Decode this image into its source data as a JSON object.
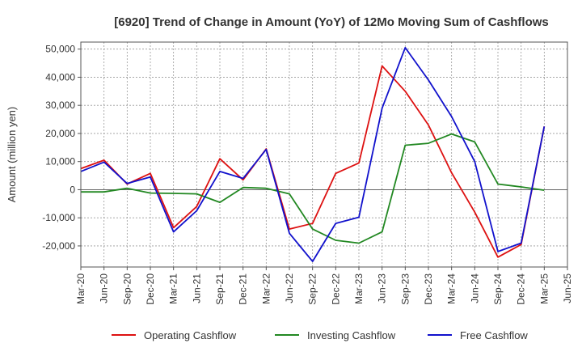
{
  "chart_data": {
    "type": "line",
    "title": "[6920]  Trend of Change in Amount (YoY) of 12Mo Moving Sum of Cashflows",
    "xlabel": "",
    "ylabel": "Amount (million yen)",
    "ylim": [
      -27500,
      52500
    ],
    "y_ticks": [
      -20000,
      -10000,
      0,
      10000,
      20000,
      30000,
      40000,
      50000
    ],
    "y_tick_labels": [
      "-20,000",
      "-10,000",
      "0",
      "10,000",
      "20,000",
      "30,000",
      "40,000",
      "50,000"
    ],
    "x_tick_labels": [
      "Mar-20",
      "Jun-20",
      "Sep-20",
      "Dec-20",
      "Mar-21",
      "Jun-21",
      "Sep-21",
      "Dec-21",
      "Mar-22",
      "Jun-22",
      "Sep-22",
      "Dec-22",
      "Mar-23",
      "Jun-23",
      "Sep-23",
      "Dec-23",
      "Mar-24",
      "Jun-24",
      "Sep-24",
      "Dec-24",
      "Mar-25",
      "Jun-25"
    ],
    "grid": true,
    "legend_position": "bottom",
    "series": [
      {
        "name": "Operating Cashflow",
        "color": "#dd1111",
        "values": [
          7500,
          10500,
          2000,
          5800,
          -13500,
          -6000,
          11000,
          3500,
          14500,
          -14000,
          -12000,
          5800,
          9500,
          44000,
          35000,
          23000,
          6000,
          -8000,
          -24000,
          -19500,
          22500
        ]
      },
      {
        "name": "Investing Cashflow",
        "color": "#228822",
        "values": [
          -800,
          -800,
          500,
          -1200,
          -1300,
          -1500,
          -4500,
          800,
          500,
          -1500,
          -14000,
          -18000,
          -19000,
          -15000,
          15800,
          16500,
          19800,
          17000,
          2000,
          1000,
          -200
        ]
      },
      {
        "name": "Free Cashflow",
        "color": "#1111cc",
        "values": [
          6500,
          9800,
          2200,
          4500,
          -15000,
          -7500,
          6500,
          4000,
          14300,
          -15500,
          -25500,
          -12000,
          -9800,
          29000,
          50500,
          39000,
          26000,
          10000,
          -22000,
          -19000,
          22500
        ]
      }
    ]
  }
}
